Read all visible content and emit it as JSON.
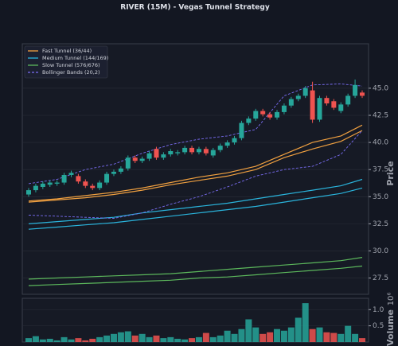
{
  "chart_data": {
    "type": "candlestick",
    "title": "RIVER (15M) - Vegas Tunnel Strategy",
    "ylabel": "Price",
    "ylim": [
      26,
      49.1
    ],
    "yticks": [
      27.5,
      {
        "value": 30,
        "label": "30.0"
      },
      32.5,
      {
        "value": 35,
        "label": "35.0"
      },
      37.5,
      {
        "value": 40,
        "label": "40.0"
      },
      42.5,
      {
        "value": 45,
        "label": "45.0"
      }
    ],
    "grid": true,
    "legend": "upper left",
    "up_color": "#26a69a",
    "down_color": "#ef5350",
    "open": [
      35.2,
      35.6,
      35.9,
      36.1,
      36.2,
      36.3,
      37.0,
      36.9,
      36.4,
      36.0,
      35.8,
      36.3,
      37.1,
      37.3,
      37.6,
      38.6,
      38.3,
      38.5,
      39.4,
      38.6,
      38.9,
      39.0,
      39.1,
      39.5,
      39.1,
      39.4,
      38.8,
      39.3,
      39.7,
      40.0,
      40.4,
      41.8,
      42.2,
      42.9,
      42.6,
      42.3,
      42.8,
      43.4,
      44.0,
      44.3,
      44.8,
      42.1,
      44.1,
      43.8,
      42.9,
      43.5,
      44.3,
      44.6
    ],
    "high": [
      35.8,
      36.2,
      36.4,
      36.5,
      36.5,
      37.2,
      37.4,
      37.1,
      36.6,
      36.2,
      36.5,
      37.3,
      37.5,
      37.8,
      38.8,
      38.8,
      38.7,
      39.2,
      39.6,
      39.1,
      39.4,
      39.3,
      39.7,
      39.7,
      39.6,
      39.6,
      39.5,
      39.9,
      40.2,
      40.6,
      42.0,
      42.4,
      43.1,
      43.1,
      42.8,
      43.0,
      43.6,
      44.2,
      44.5,
      45.2,
      45.6,
      44.3,
      44.3,
      44.0,
      43.7,
      44.5,
      45.8,
      44.8
    ],
    "low": [
      35.0,
      35.4,
      35.7,
      35.9,
      36.0,
      36.1,
      36.8,
      36.2,
      35.8,
      35.6,
      35.6,
      36.1,
      36.9,
      37.1,
      37.4,
      38.1,
      38.1,
      38.3,
      38.4,
      38.4,
      38.7,
      38.8,
      38.9,
      38.9,
      38.9,
      38.8,
      38.6,
      39.1,
      39.5,
      39.8,
      40.2,
      41.6,
      42.0,
      42.4,
      42.1,
      42.1,
      42.6,
      43.2,
      43.8,
      44.1,
      41.8,
      41.9,
      43.4,
      43.0,
      42.7,
      43.3,
      44.1,
      44.1
    ],
    "close": [
      35.6,
      36.0,
      36.2,
      36.3,
      36.3,
      37.0,
      37.2,
      36.4,
      36.0,
      35.8,
      36.3,
      37.1,
      37.3,
      37.6,
      38.6,
      38.3,
      38.5,
      39.0,
      38.6,
      38.9,
      39.2,
      39.1,
      39.5,
      39.1,
      39.4,
      39.0,
      39.3,
      39.7,
      40.0,
      40.4,
      41.8,
      42.2,
      42.9,
      42.6,
      42.3,
      42.8,
      43.4,
      44.0,
      44.3,
      45.0,
      42.1,
      44.1,
      43.6,
      43.2,
      43.5,
      44.3,
      45.3,
      44.3
    ],
    "lines": [
      {
        "name": "Fast Tunnel (36/44)",
        "color": "#f0a040",
        "style": "solid",
        "x": [
          0,
          4,
          8,
          12,
          16,
          20,
          24,
          28,
          32,
          36,
          40,
          44,
          47
        ],
        "upper": [
          34.6,
          34.8,
          35.1,
          35.4,
          35.8,
          36.3,
          36.8,
          37.2,
          37.8,
          38.9,
          40.0,
          40.6,
          41.6
        ],
        "lower": [
          34.5,
          34.7,
          34.9,
          35.2,
          35.6,
          36.1,
          36.5,
          36.9,
          37.5,
          38.6,
          39.4,
          40.1,
          41.1
        ]
      },
      {
        "name": "Medium Tunnel (144/169)",
        "color": "#2ab4dc",
        "style": "solid",
        "x": [
          0,
          4,
          8,
          12,
          16,
          20,
          24,
          28,
          32,
          36,
          40,
          44,
          47
        ],
        "upper": [
          32.5,
          32.7,
          32.9,
          33.1,
          33.5,
          33.8,
          34.1,
          34.4,
          34.8,
          35.2,
          35.6,
          36.0,
          36.6
        ],
        "lower": [
          32.0,
          32.2,
          32.4,
          32.6,
          32.9,
          33.2,
          33.5,
          33.8,
          34.1,
          34.5,
          34.9,
          35.3,
          35.8
        ]
      },
      {
        "name": "Slow Tunnel (576/676)",
        "color": "#5cb85c",
        "style": "solid",
        "x": [
          0,
          4,
          8,
          12,
          16,
          20,
          24,
          28,
          32,
          36,
          40,
          44,
          47
        ],
        "upper": [
          27.4,
          27.5,
          27.6,
          27.7,
          27.8,
          27.9,
          28.1,
          28.3,
          28.5,
          28.7,
          28.9,
          29.1,
          29.4
        ],
        "lower": [
          26.8,
          26.9,
          27.0,
          27.1,
          27.2,
          27.3,
          27.5,
          27.6,
          27.8,
          28.0,
          28.2,
          28.4,
          28.6
        ]
      },
      {
        "name": "Bollinger Bands (20,2)",
        "color": "#7b6ef6",
        "style": "dashed",
        "x": [
          0,
          4,
          8,
          12,
          16,
          20,
          24,
          28,
          32,
          36,
          40,
          44,
          47
        ],
        "upper": [
          36.2,
          36.6,
          37.5,
          38.0,
          39.0,
          39.8,
          40.3,
          40.6,
          41.2,
          44.3,
          45.3,
          45.4,
          45.2
        ],
        "lower": [
          33.3,
          33.2,
          33.1,
          33.0,
          33.5,
          34.3,
          35.0,
          35.9,
          36.9,
          37.5,
          37.8,
          38.9,
          41.1
        ]
      }
    ],
    "volume": {
      "ylabel": "Volume",
      "offset_label": "10⁶",
      "ylim": [
        0,
        1.35
      ],
      "yticks": [
        0.5,
        {
          "value": 1,
          "label": "1.0"
        }
      ],
      "values": [
        0.12,
        0.18,
        0.08,
        0.1,
        0.05,
        0.15,
        0.08,
        0.12,
        0.05,
        0.1,
        0.15,
        0.2,
        0.25,
        0.3,
        0.33,
        0.2,
        0.25,
        0.15,
        0.2,
        0.12,
        0.15,
        0.1,
        0.08,
        0.12,
        0.15,
        0.28,
        0.15,
        0.2,
        0.35,
        0.25,
        0.4,
        0.7,
        0.45,
        0.25,
        0.3,
        0.4,
        0.35,
        0.45,
        0.75,
        1.2,
        0.4,
        0.45,
        0.3,
        0.28,
        0.25,
        0.5,
        0.25,
        0.12
      ]
    }
  }
}
